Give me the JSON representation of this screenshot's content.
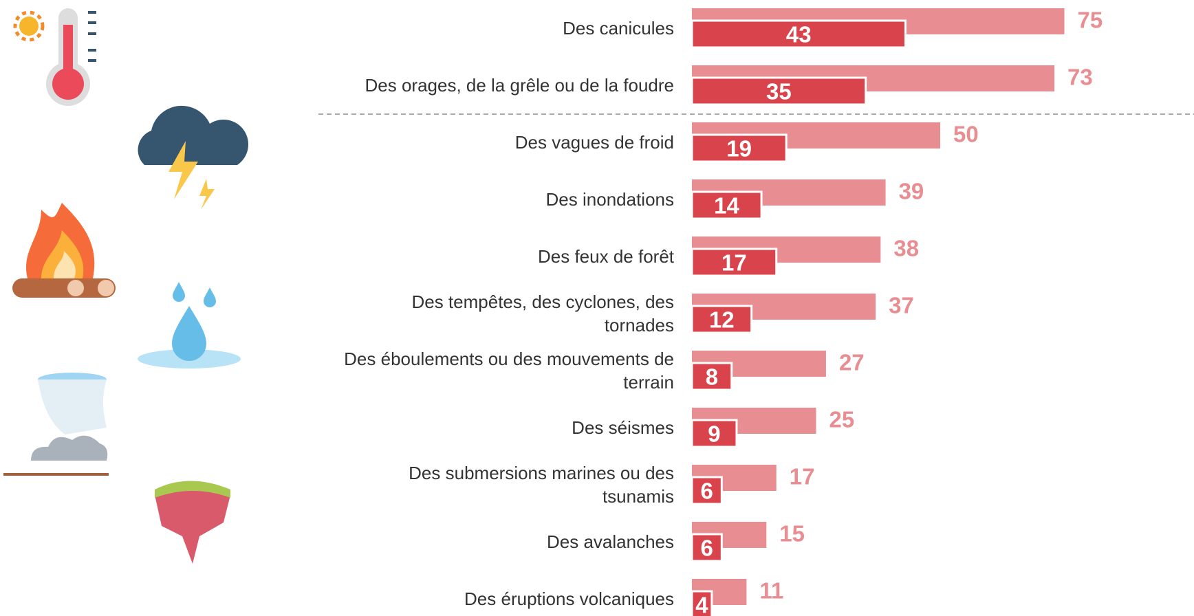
{
  "chart_data": {
    "type": "bar",
    "categories": [
      "Des canicules",
      "Des orages, de la grêle ou de la foudre",
      "Des vagues de froid",
      "Des inondations",
      "Des feux de forêt",
      "Des tempêtes, des cyclones, des\ntornades",
      "Des éboulements ou des mouvements de\nterrain",
      "Des séismes",
      "Des submersions marines ou des\ntsunamis",
      "Des avalanches",
      "Des éruptions volcaniques"
    ],
    "series": [
      {
        "color": "#e88e92",
        "values": [
          75,
          73,
          50,
          39,
          38,
          37,
          27,
          25,
          17,
          15,
          11
        ]
      },
      {
        "color": "#d9434b",
        "values": [
          43,
          35,
          19,
          14,
          17,
          12,
          8,
          9,
          6,
          6,
          4
        ]
      }
    ]
  }
}
